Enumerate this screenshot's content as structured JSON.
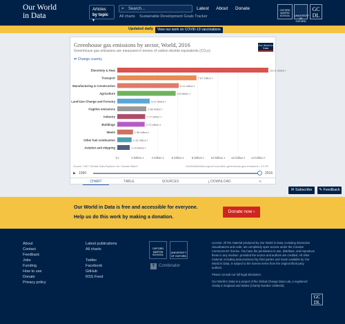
{
  "header": {
    "logo_line1": "Our World",
    "logo_line2": "in Data",
    "articles_line1": "Articles",
    "articles_line2": "by topic",
    "search_placeholder": "Search...",
    "sub_links": [
      "All charts",
      "Sustainable Development Goals Tracker"
    ],
    "nav": [
      "Latest",
      "About",
      "Donate"
    ],
    "oxford_martin": "OXFORD MARTIN SCHOOL",
    "oxford": "UNIVERSITY OF OXFORD",
    "gcdl": "GC DL"
  },
  "banner": {
    "text": "Updated daily",
    "button": "View our work on COVID-19 vaccinations"
  },
  "chart": {
    "title": "Greenhouse gas emissions by sector, World, 2016",
    "subtitle": "Greenhouse gas emissions are measured in tonnes of carbon dioxide equivalents (CO₂e).",
    "logo": "Our World in Data",
    "change_country": "Change country",
    "source": "Source: CAIT Climate Data Explorer via. Climate Watch",
    "source_right": "OurWorldInData.org/co2-and-other-greenhouse-gas-emissions • CC BY",
    "timeline_start": "1990",
    "timeline_end": "2016",
    "tabs": [
      "CHART",
      "TABLE",
      "SOURCES",
      "DOWNLOAD"
    ],
    "active_tab": "CHART"
  },
  "chart_data": {
    "type": "bar",
    "orientation": "horizontal",
    "title": "Greenhouse gas emissions by sector, World, 2016",
    "subtitle": "Greenhouse gas emissions are measured in tonnes of carbon dioxide equivalents (CO₂e).",
    "unit": "tonnes CO₂e",
    "categories": [
      "Electricity & Heat",
      "Transport",
      "Manufacturing & Construction",
      "Agriculture",
      "Land-Use Change and Forestry",
      "Fugitive emissions",
      "Industry",
      "Buildings",
      "Waste",
      "Other fuel combustion",
      "Aviation and shipping"
    ],
    "values": [
      15.01,
      7.87,
      6.11,
      5.8,
      3.22,
      2.88,
      2.77,
      2.72,
      1.56,
      1.42,
      1.24
    ],
    "value_labels": [
      "15.01 billion t",
      "7.87 billion t",
      "6.11 billion t",
      "5.8 billion t",
      "3.22 billion t",
      "2.88 billion t",
      "2.77 billion t",
      "2.72 billion t",
      "1.56 billion t",
      "1.42 billion t",
      "1.24 billion t"
    ],
    "colors": [
      "#d9534f",
      "#ea8a54",
      "#e07a6a",
      "#6fb35c",
      "#58a7d9",
      "#9a9a9a",
      "#b04a6a",
      "#b65cc4",
      "#cf6f60",
      "#4a9fb0",
      "#4d5f7e"
    ],
    "x_ticks": [
      "0 t",
      "2 billion t",
      "4 billion t",
      "6 billion t",
      "8 billion t",
      "10 billion t",
      "12 billion t",
      "14 billion t"
    ],
    "xlim": [
      0,
      15.5
    ],
    "grid": true
  },
  "aside": {
    "subscribe": "Subscribe",
    "feedback": "Feedback"
  },
  "donate": {
    "line1": "Our World in Data is free and accessible for everyone.",
    "line2": "Help us do this work by making a donation.",
    "button": "Donate now"
  },
  "footer": {
    "col1": [
      "About",
      "Contact",
      "Feedback",
      "Jobs",
      "Funding",
      "How to use",
      "Donate",
      "Privacy policy"
    ],
    "col2": [
      "Latest publications",
      "All charts",
      "",
      "Twitter",
      "Facebook",
      "GitHub",
      "RSS Feed"
    ],
    "oxford_martin": "OXFORD MARTIN SCHOOL",
    "oxford": "UNIVERSITY OF OXFORD",
    "ycombinator": "Combinator",
    "license_p1": "License: All the material produced by Our World in Data, including interactive visualizations and code, are completely open access under the Creative Commons BY license. You have the permission to use, distribute, and reproduce these in any medium, provided the source and authors are credited. All other material, including data produced by third parties and made available by Our World in Data, is subject to the license terms from the original third-party authors.",
    "license_p2": "Please consult our full legal disclaimer.",
    "license_p3": "Our World In Data is a project of the Global Change Data Lab, a registered charity in England and Wales (Charity Number 1186433).",
    "gcdl": "GC DL"
  }
}
